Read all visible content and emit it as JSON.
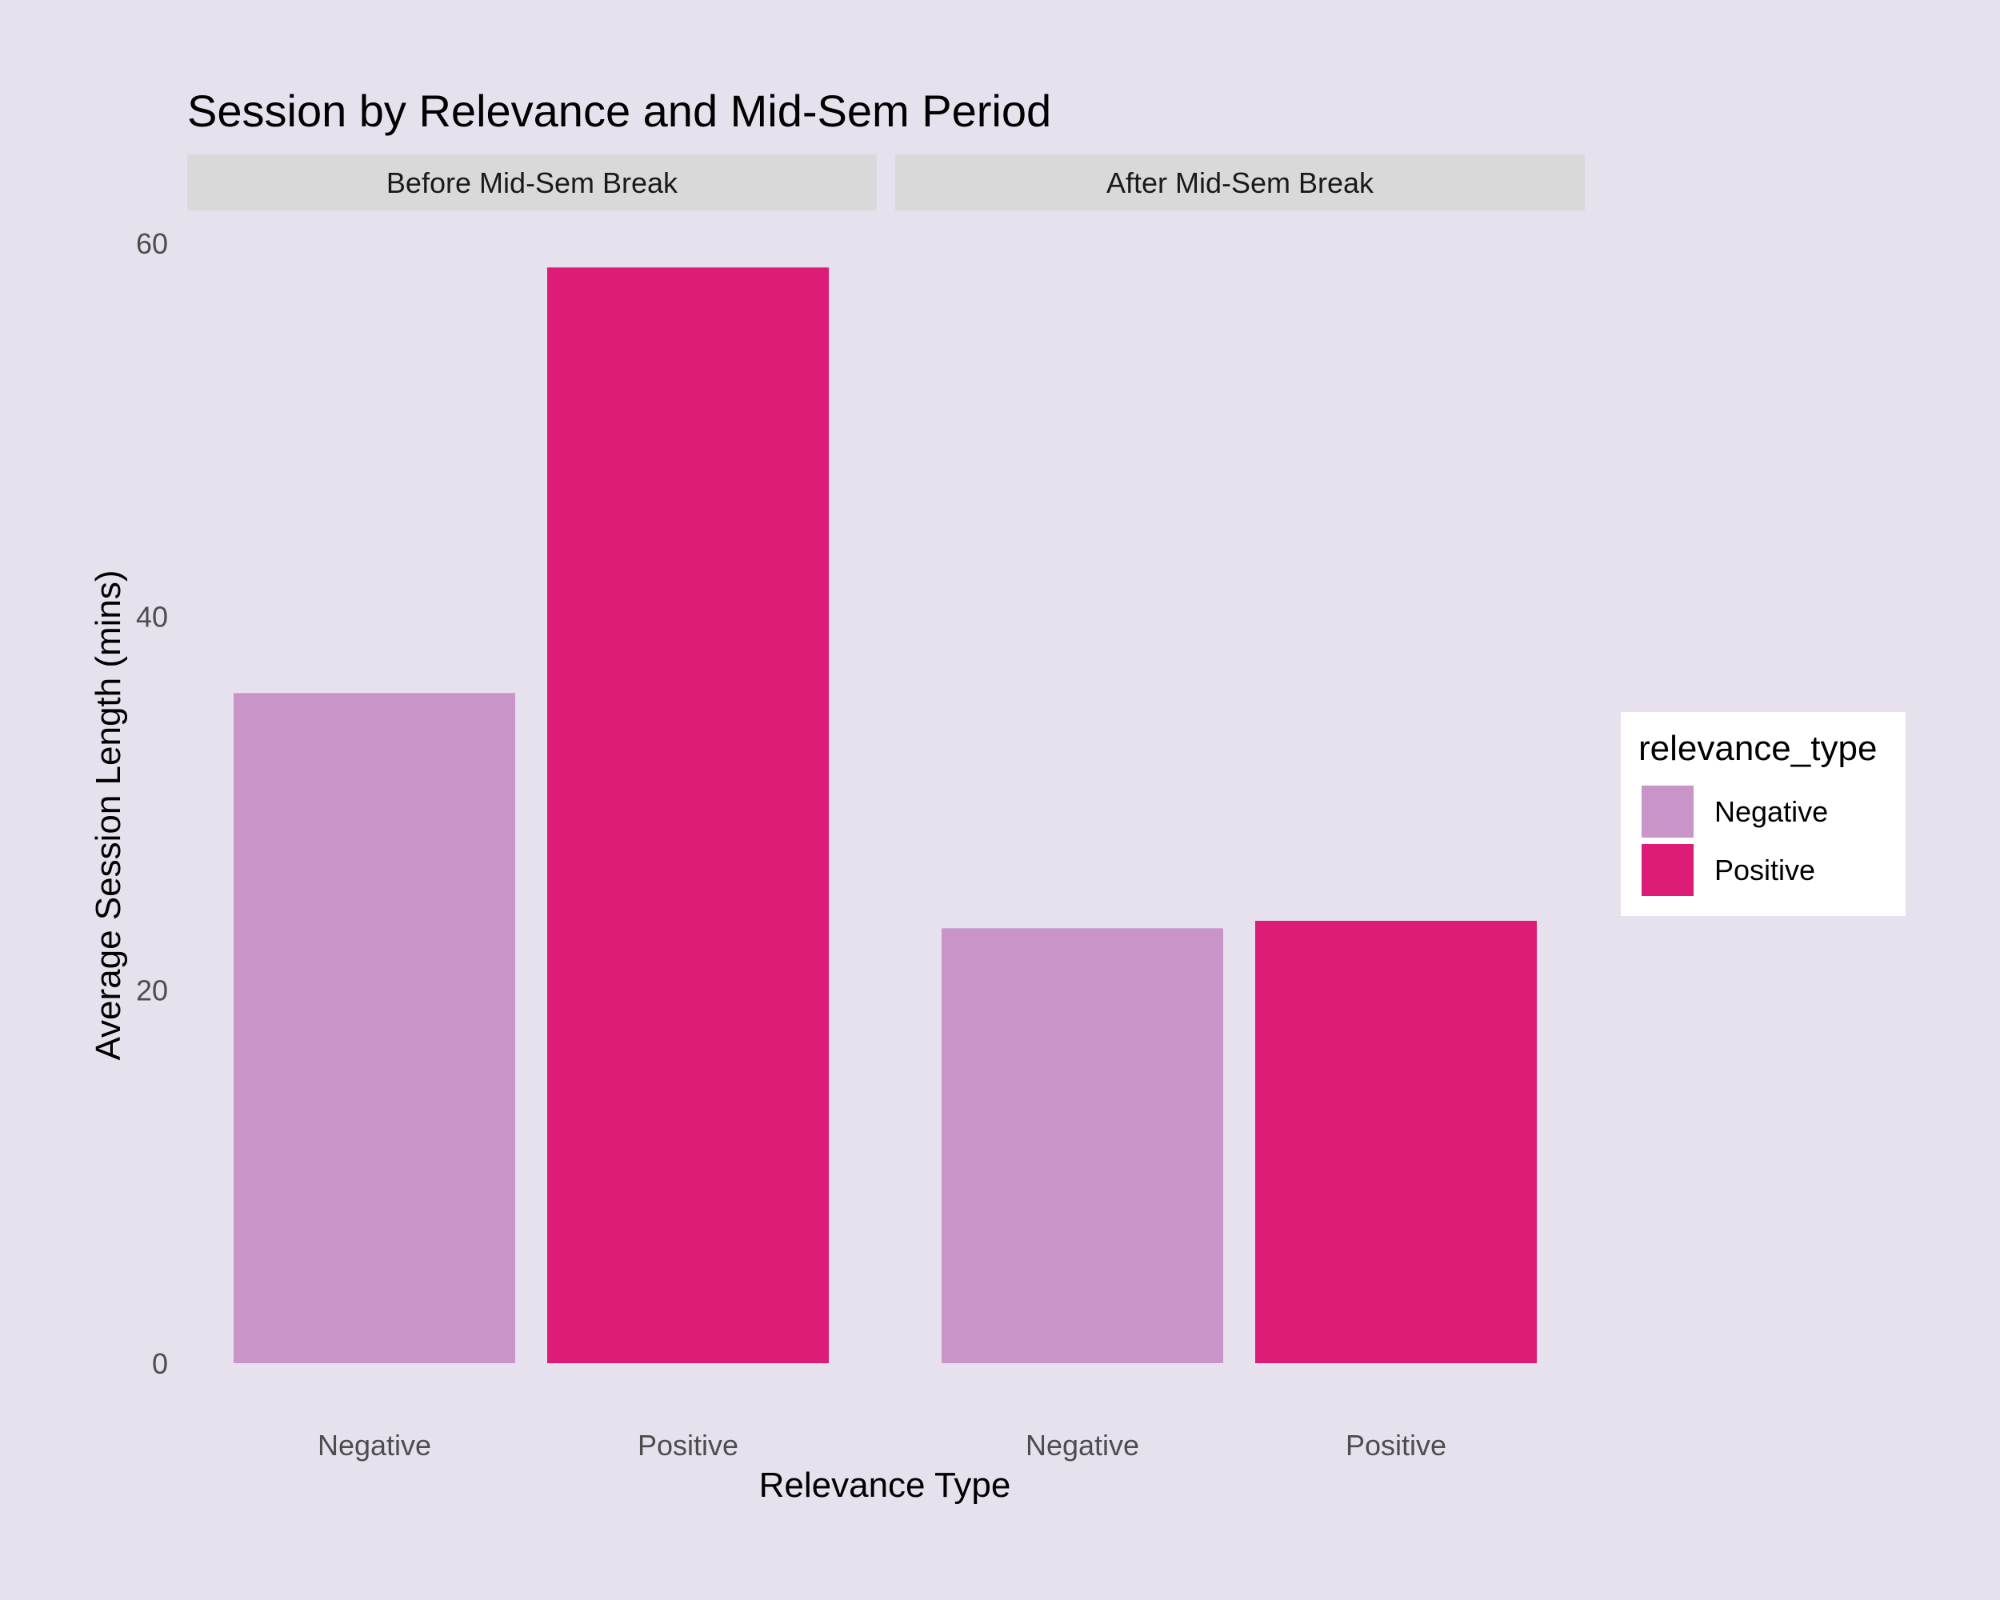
{
  "chart_data": {
    "type": "bar",
    "title": "Session by Relevance and Mid-Sem Period",
    "xlabel": "Relevance Type",
    "ylabel": "Average Session Length (mins)",
    "ylim": [
      0,
      60
    ],
    "yticks": [
      "0",
      "20",
      "40",
      "60"
    ],
    "categories": [
      "Negative",
      "Positive"
    ],
    "facets": [
      {
        "label": "Before Mid-Sem Break",
        "values": [
          35.9,
          58.7
        ]
      },
      {
        "label": "After Mid-Sem Break",
        "values": [
          23.3,
          23.7
        ]
      }
    ],
    "grid": false,
    "legend": {
      "title": "relevance_type",
      "position": "right",
      "items": [
        {
          "label": "Negative",
          "color": "#c994c7"
        },
        {
          "label": "Positive",
          "color": "#dd1c77"
        }
      ]
    },
    "colors": {
      "background": "#e7e1ee",
      "strip": "#d9d9d9",
      "legend_box": "#ffffff"
    }
  }
}
